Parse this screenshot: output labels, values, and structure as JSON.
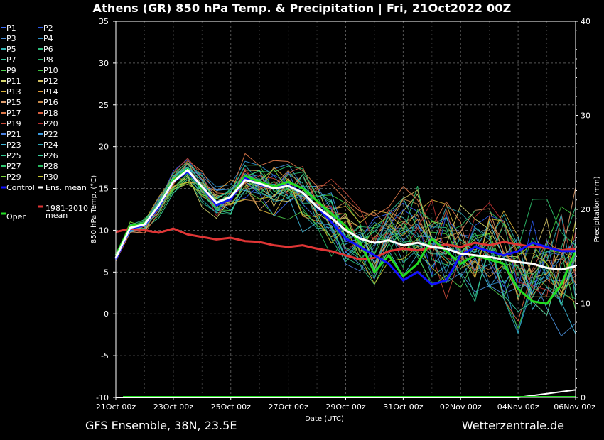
{
  "header": {
    "title": "Athens  (GR)  850 hPa Temp. & Precipitation | Fri, 21Oct2022 00Z"
  },
  "footer": {
    "left": "GFS Ensemble, 38N, 23.5E",
    "right": "Wetterzentrale.de"
  },
  "legend": {
    "items": [
      {
        "label": "P1",
        "color": "#3f6fff"
      },
      {
        "label": "P2",
        "color": "#2a58e8"
      },
      {
        "label": "P3",
        "color": "#4a8fd8"
      },
      {
        "label": "P4",
        "color": "#2f8fc8"
      },
      {
        "label": "P5",
        "color": "#31b3b3"
      },
      {
        "label": "P6",
        "color": "#2fbf7f"
      },
      {
        "label": "P7",
        "color": "#38c9a0"
      },
      {
        "label": "P8",
        "color": "#2ab06a"
      },
      {
        "label": "P9",
        "color": "#4fd24f"
      },
      {
        "label": "P10",
        "color": "#3ec63e"
      },
      {
        "label": "P11",
        "color": "#d8d870"
      },
      {
        "label": "P12",
        "color": "#d2c060"
      },
      {
        "label": "P13",
        "color": "#d9b23c"
      },
      {
        "label": "P14",
        "color": "#e09a3a"
      },
      {
        "label": "P15",
        "color": "#e0a070"
      },
      {
        "label": "P16",
        "color": "#c88a4a"
      },
      {
        "label": "P17",
        "color": "#e07a4a"
      },
      {
        "label": "P18",
        "color": "#d86040"
      },
      {
        "label": "P19",
        "color": "#c84a3a"
      },
      {
        "label": "P20",
        "color": "#b83030"
      },
      {
        "label": "P21",
        "color": "#4a80e0"
      },
      {
        "label": "P22",
        "color": "#3a9ae0"
      },
      {
        "label": "P23",
        "color": "#3fb8d8"
      },
      {
        "label": "P24",
        "color": "#2fa8b8"
      },
      {
        "label": "P25",
        "color": "#2fc890"
      },
      {
        "label": "P26",
        "color": "#3ad0a0"
      },
      {
        "label": "P27",
        "color": "#30c870"
      },
      {
        "label": "P28",
        "color": "#28b860"
      },
      {
        "label": "P29",
        "color": "#78d838"
      },
      {
        "label": "P30",
        "color": "#c8c830"
      }
    ],
    "control": {
      "label": "Control",
      "color": "#1010ff"
    },
    "ens_mean": {
      "label": "Ens. mean",
      "color": "#ffffff"
    },
    "oper": {
      "label": "Oper",
      "color": "#22dd22"
    },
    "climate_line1": "1981-2010",
    "climate_line2": "mean",
    "climate_color": "#e03535"
  },
  "chart_data": {
    "type": "line",
    "y_axis": {
      "label": "850 hPa Temp. (°C)",
      "range": [
        -10,
        35
      ],
      "ticks": [
        35,
        30,
        25,
        20,
        15,
        10,
        5,
        0,
        -5,
        -10
      ]
    },
    "y2_axis": {
      "label": "Precipitation (mm)",
      "range": [
        0,
        40
      ],
      "ticks": [
        40,
        30,
        20,
        10,
        0
      ]
    },
    "x_axis": {
      "label": "Date (UTC)",
      "ticks": [
        "21Oct 00z",
        "23Oct 00z",
        "25Oct 00z",
        "27Oct 00z",
        "29Oct 00z",
        "31Oct 00z",
        "02Nov 00z",
        "04Nov 00z",
        "06Nov 00z"
      ],
      "tick_hours": [
        0,
        48,
        96,
        144,
        192,
        240,
        288,
        336,
        384
      ]
    },
    "grid": true,
    "series": [
      {
        "name": "1981-2010 mean",
        "color": "#e03535",
        "width": 3,
        "x": [
          0,
          12,
          24,
          36,
          48,
          60,
          72,
          84,
          96,
          108,
          120,
          132,
          144,
          156,
          168,
          180,
          192,
          204,
          216,
          228,
          240,
          252,
          264,
          276,
          288,
          300,
          312,
          324,
          336,
          348,
          360,
          372,
          384
        ],
        "y": [
          9.8,
          10.2,
          10.0,
          9.7,
          10.2,
          9.5,
          9.2,
          8.9,
          9.1,
          8.7,
          8.6,
          8.2,
          8.0,
          8.2,
          7.8,
          7.5,
          7.0,
          6.5,
          6.7,
          7.5,
          7.8,
          7.6,
          7.9,
          8.3,
          8.0,
          8.5,
          8.2,
          8.6,
          8.3,
          8.0,
          7.9,
          7.6,
          7.8
        ]
      },
      {
        "name": "Oper",
        "color": "#22dd22",
        "width": 3,
        "x": [
          0,
          12,
          24,
          36,
          48,
          60,
          72,
          84,
          96,
          108,
          120,
          132,
          144,
          156,
          168,
          180,
          192,
          204,
          216,
          228,
          240,
          252,
          264,
          276,
          288,
          300,
          312,
          324,
          336,
          348,
          360,
          372,
          384
        ],
        "y": [
          7.0,
          10.5,
          10.8,
          13.0,
          16.0,
          17.3,
          15.0,
          13.2,
          14.0,
          16.5,
          15.8,
          15.2,
          15.8,
          15.0,
          13.5,
          12.0,
          10.5,
          8.5,
          5.0,
          7.0,
          4.5,
          6.0,
          9.0,
          7.5,
          6.0,
          7.0,
          6.5,
          6.0,
          3.0,
          1.5,
          1.2,
          3.5,
          7.5
        ]
      },
      {
        "name": "Control",
        "color": "#1010ff",
        "width": 3,
        "x": [
          0,
          12,
          24,
          36,
          48,
          60,
          72,
          84,
          96,
          108,
          120,
          132,
          144,
          156,
          168,
          180,
          192,
          204,
          216,
          228,
          240,
          252,
          264,
          276,
          288,
          300,
          312,
          324,
          336,
          348,
          360,
          372,
          384
        ],
        "y": [
          6.5,
          10.2,
          10.6,
          12.8,
          15.8,
          17.0,
          15.2,
          13.0,
          13.7,
          16.2,
          15.5,
          15.0,
          15.4,
          14.5,
          12.8,
          11.0,
          9.0,
          8.0,
          7.0,
          6.0,
          4.0,
          5.0,
          3.5,
          4.0,
          7.0,
          8.0,
          7.5,
          7.0,
          7.5,
          8.5,
          8.0,
          7.5,
          7.5
        ]
      },
      {
        "name": "Ens. mean",
        "color": "#ffffff",
        "width": 3,
        "x": [
          0,
          12,
          24,
          36,
          48,
          60,
          72,
          84,
          96,
          108,
          120,
          132,
          144,
          156,
          168,
          180,
          192,
          204,
          216,
          228,
          240,
          252,
          264,
          276,
          288,
          300,
          312,
          324,
          336,
          348,
          360,
          372,
          384
        ],
        "y": [
          6.7,
          10.3,
          10.7,
          13.0,
          15.8,
          17.2,
          15.2,
          13.3,
          14.0,
          16.0,
          15.6,
          15.0,
          15.3,
          14.5,
          12.8,
          11.5,
          10.0,
          9.0,
          8.5,
          8.8,
          8.2,
          8.5,
          8.0,
          7.8,
          7.2,
          7.0,
          6.8,
          6.5,
          6.2,
          6.0,
          5.5,
          5.3,
          5.7
        ]
      },
      {
        "name": "Precipitation (sum)",
        "color": "#ffffff",
        "width": 2,
        "x": [
          0,
          48,
          96,
          144,
          192,
          240,
          288,
          336,
          348,
          360,
          372,
          384
        ],
        "y_mm": [
          0,
          0,
          0,
          0,
          0,
          0,
          0,
          0,
          0.2,
          0.4,
          0.6,
          0.8
        ]
      }
    ]
  }
}
